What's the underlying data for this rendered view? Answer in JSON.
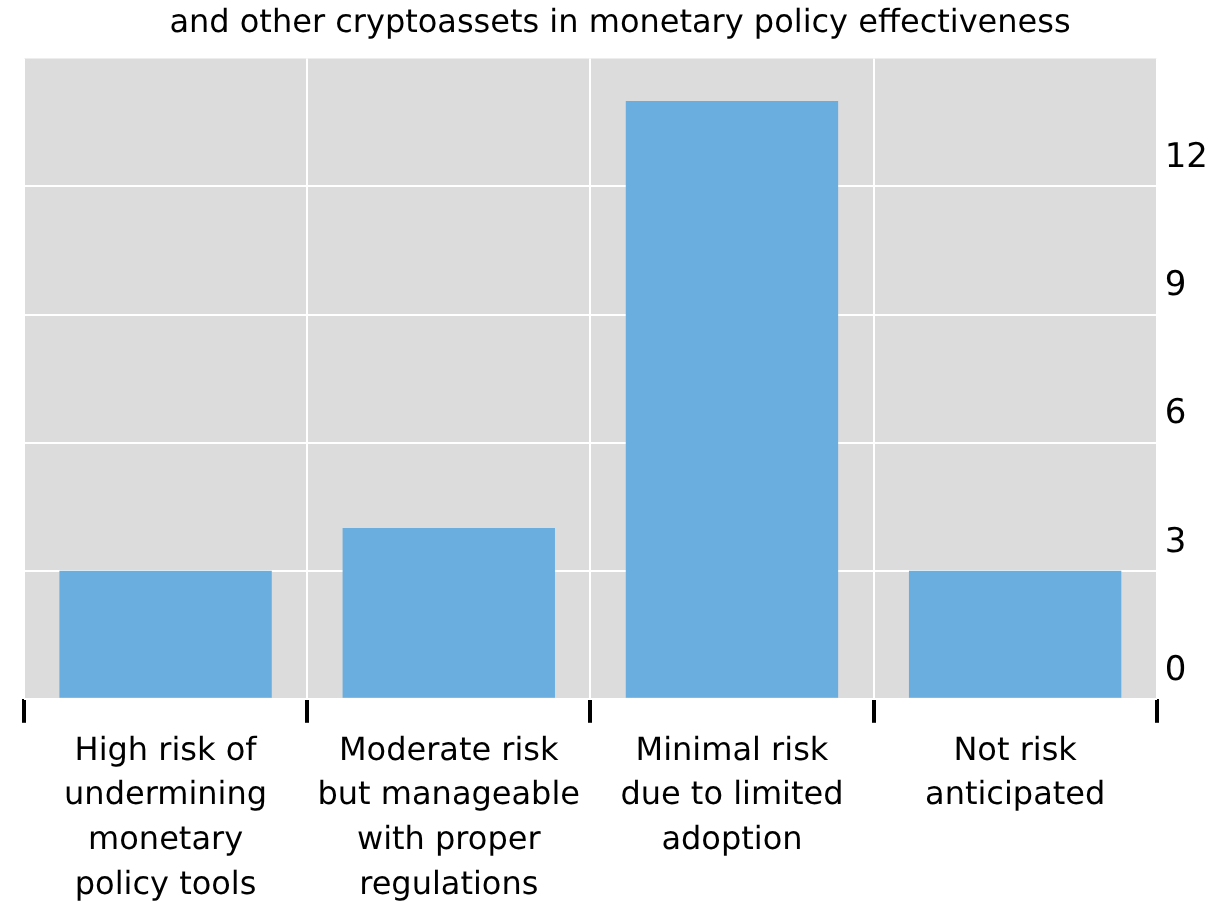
{
  "chart_data": {
    "type": "bar",
    "title": "and other cryptoassets in monetary policy effectiveness",
    "categories": [
      "High risk of undermining monetary policy tools",
      "Moderate risk but manageable with proper regulations",
      "Minimal risk due to limited adoption",
      "Not risk anticipated"
    ],
    "values": [
      3,
      4,
      14,
      3
    ],
    "color": "#6aaee0",
    "ylim": [
      0,
      15
    ],
    "yticks": [
      0,
      3,
      6,
      9,
      12
    ],
    "grid": true,
    "legend": false
  }
}
